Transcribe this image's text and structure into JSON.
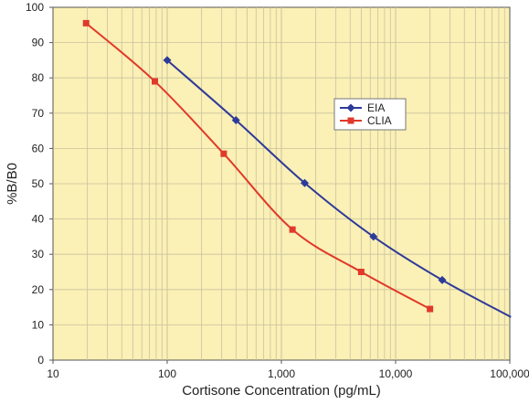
{
  "chart_data": {
    "type": "line",
    "xscale": "log",
    "xlabel": "Cortisone Concentration (pg/mL)",
    "ylabel": "%B/B0",
    "xlim": [
      10,
      100000
    ],
    "ylim": [
      0,
      100
    ],
    "x_ticks": [
      {
        "value": 10,
        "label": "10"
      },
      {
        "value": 100,
        "label": "100"
      },
      {
        "value": 1000,
        "label": "1,000"
      },
      {
        "value": 10000,
        "label": "10,000"
      },
      {
        "value": 100000,
        "label": "100,000"
      }
    ],
    "y_ticks": [
      {
        "value": 0,
        "label": "0"
      },
      {
        "value": 10,
        "label": "10"
      },
      {
        "value": 20,
        "label": "20"
      },
      {
        "value": 30,
        "label": "30"
      },
      {
        "value": 40,
        "label": "40"
      },
      {
        "value": 50,
        "label": "50"
      },
      {
        "value": 60,
        "label": "60"
      },
      {
        "value": 70,
        "label": "70"
      },
      {
        "value": 80,
        "label": "80"
      },
      {
        "value": 90,
        "label": "90"
      },
      {
        "value": 100,
        "label": "100"
      }
    ],
    "grid": true,
    "legend_position": "center-right",
    "plot_background": "#fbf0b5",
    "grid_color": "#c9c2a0",
    "series": [
      {
        "name": "EIA",
        "color": "#2e3a9a",
        "marker": "diamond",
        "x": [
          100,
          400,
          1600,
          6400,
          25600,
          102400
        ],
        "y": [
          85,
          68,
          50.2,
          35,
          22.7,
          12.2
        ]
      },
      {
        "name": "CLIA",
        "color": "#e0392b",
        "marker": "square",
        "x": [
          19.5,
          78,
          312.5,
          1250,
          5000,
          20000
        ],
        "y": [
          95.5,
          79,
          58.5,
          37,
          25,
          14.5
        ]
      }
    ]
  }
}
